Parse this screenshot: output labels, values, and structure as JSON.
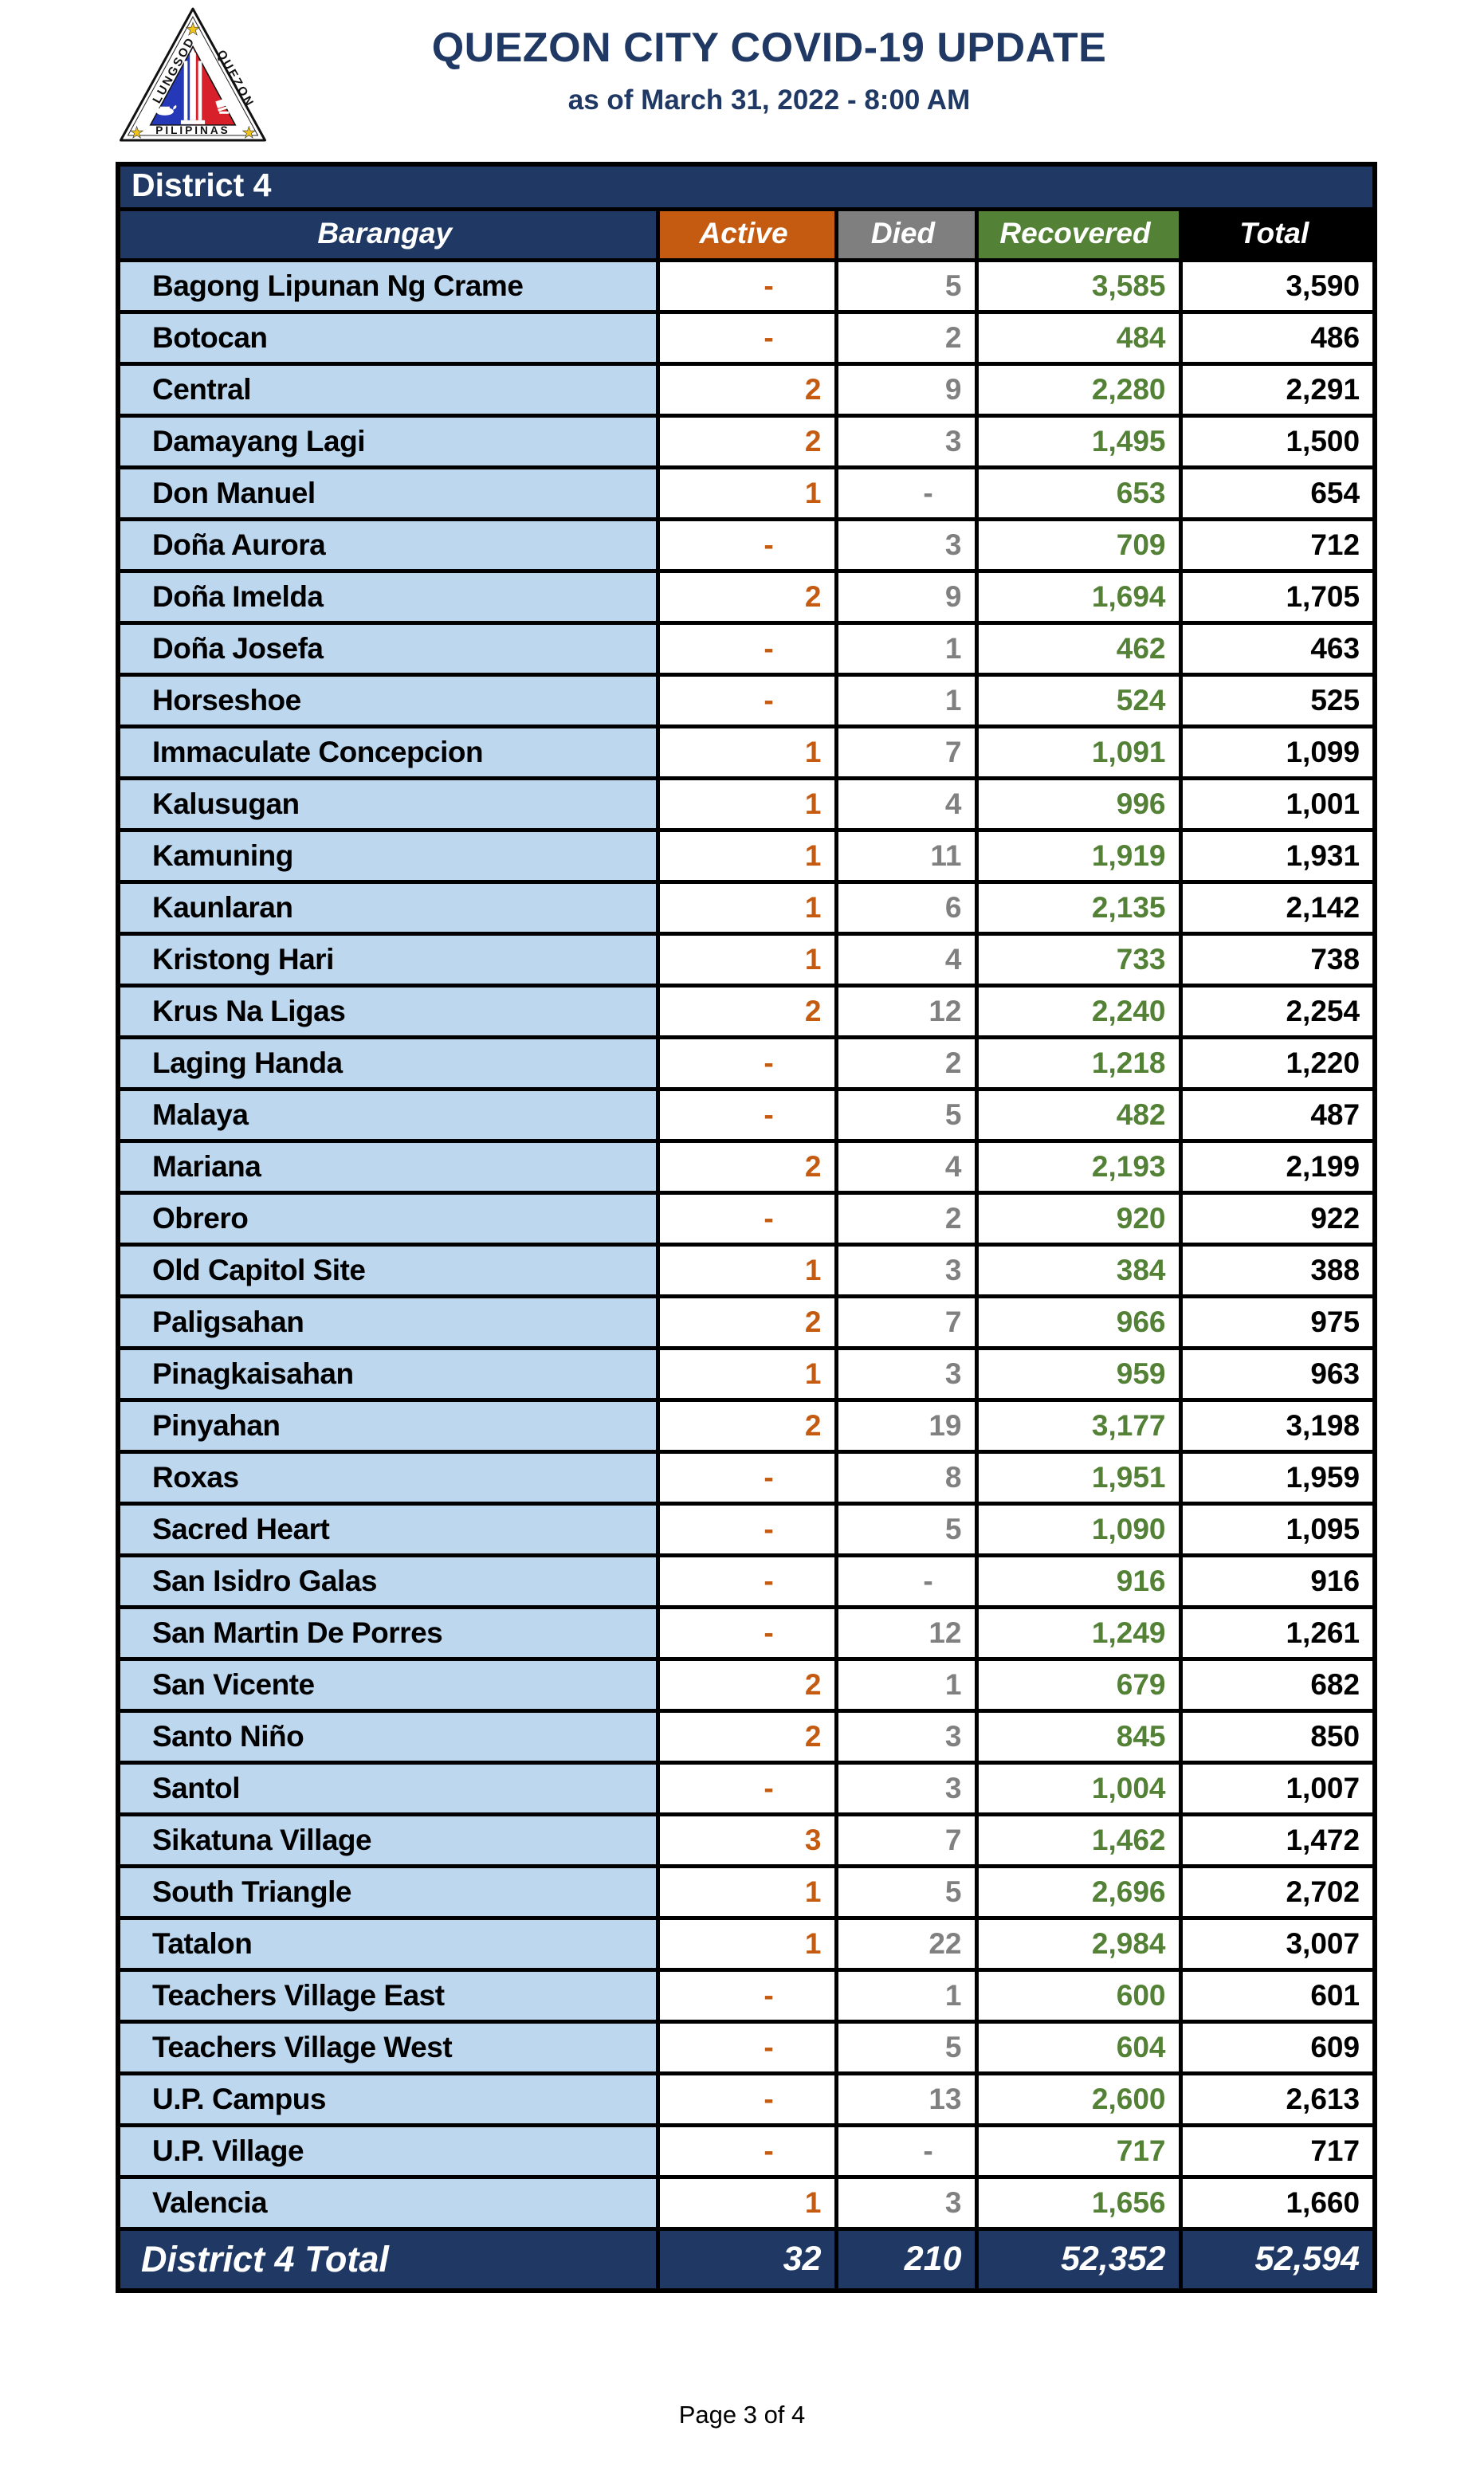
{
  "header": {
    "title": "QUEZON CITY COVID-19 UPDATE",
    "subtitle": "as of March 31, 2022 - 8:00 AM",
    "logo": {
      "text_left": "LUNGSOD",
      "text_right": "QUEZON",
      "text_bottom": "PILIPINAS"
    }
  },
  "colors": {
    "navy": "#1F3864",
    "orange": "#C55A11",
    "gray": "#7F7F7F",
    "green": "#538135",
    "light_blue": "#BDD7EE",
    "title_text": "#1F3864"
  },
  "table": {
    "district_label": "District 4",
    "columns": [
      "Barangay",
      "Active",
      "Died",
      "Recovered",
      "Total"
    ],
    "rows": [
      {
        "barangay": "Bagong Lipunan Ng Crame",
        "active": "-",
        "died": "5",
        "recovered": "3,585",
        "total": "3,590"
      },
      {
        "barangay": "Botocan",
        "active": "-",
        "died": "2",
        "recovered": "484",
        "total": "486"
      },
      {
        "barangay": "Central",
        "active": "2",
        "died": "9",
        "recovered": "2,280",
        "total": "2,291"
      },
      {
        "barangay": "Damayang Lagi",
        "active": "2",
        "died": "3",
        "recovered": "1,495",
        "total": "1,500"
      },
      {
        "barangay": "Don Manuel",
        "active": "1",
        "died": "-",
        "recovered": "653",
        "total": "654"
      },
      {
        "barangay": "Doña Aurora",
        "active": "-",
        "died": "3",
        "recovered": "709",
        "total": "712"
      },
      {
        "barangay": "Doña Imelda",
        "active": "2",
        "died": "9",
        "recovered": "1,694",
        "total": "1,705"
      },
      {
        "barangay": "Doña Josefa",
        "active": "-",
        "died": "1",
        "recovered": "462",
        "total": "463"
      },
      {
        "barangay": "Horseshoe",
        "active": "-",
        "died": "1",
        "recovered": "524",
        "total": "525"
      },
      {
        "barangay": "Immaculate Concepcion",
        "active": "1",
        "died": "7",
        "recovered": "1,091",
        "total": "1,099"
      },
      {
        "barangay": "Kalusugan",
        "active": "1",
        "died": "4",
        "recovered": "996",
        "total": "1,001"
      },
      {
        "barangay": "Kamuning",
        "active": "1",
        "died": "11",
        "recovered": "1,919",
        "total": "1,931"
      },
      {
        "barangay": "Kaunlaran",
        "active": "1",
        "died": "6",
        "recovered": "2,135",
        "total": "2,142"
      },
      {
        "barangay": "Kristong Hari",
        "active": "1",
        "died": "4",
        "recovered": "733",
        "total": "738"
      },
      {
        "barangay": "Krus Na Ligas",
        "active": "2",
        "died": "12",
        "recovered": "2,240",
        "total": "2,254"
      },
      {
        "barangay": "Laging Handa",
        "active": "-",
        "died": "2",
        "recovered": "1,218",
        "total": "1,220"
      },
      {
        "barangay": "Malaya",
        "active": "-",
        "died": "5",
        "recovered": "482",
        "total": "487"
      },
      {
        "barangay": "Mariana",
        "active": "2",
        "died": "4",
        "recovered": "2,193",
        "total": "2,199"
      },
      {
        "barangay": "Obrero",
        "active": "-",
        "died": "2",
        "recovered": "920",
        "total": "922"
      },
      {
        "barangay": "Old Capitol Site",
        "active": "1",
        "died": "3",
        "recovered": "384",
        "total": "388"
      },
      {
        "barangay": "Paligsahan",
        "active": "2",
        "died": "7",
        "recovered": "966",
        "total": "975"
      },
      {
        "barangay": "Pinagkaisahan",
        "active": "1",
        "died": "3",
        "recovered": "959",
        "total": "963"
      },
      {
        "barangay": "Pinyahan",
        "active": "2",
        "died": "19",
        "recovered": "3,177",
        "total": "3,198"
      },
      {
        "barangay": "Roxas",
        "active": "-",
        "died": "8",
        "recovered": "1,951",
        "total": "1,959"
      },
      {
        "barangay": "Sacred Heart",
        "active": "-",
        "died": "5",
        "recovered": "1,090",
        "total": "1,095"
      },
      {
        "barangay": "San Isidro Galas",
        "active": "-",
        "died": "-",
        "recovered": "916",
        "total": "916"
      },
      {
        "barangay": "San Martin De Porres",
        "active": "-",
        "died": "12",
        "recovered": "1,249",
        "total": "1,261"
      },
      {
        "barangay": "San Vicente",
        "active": "2",
        "died": "1",
        "recovered": "679",
        "total": "682"
      },
      {
        "barangay": "Santo Niño",
        "active": "2",
        "died": "3",
        "recovered": "845",
        "total": "850"
      },
      {
        "barangay": "Santol",
        "active": "-",
        "died": "3",
        "recovered": "1,004",
        "total": "1,007"
      },
      {
        "barangay": "Sikatuna Village",
        "active": "3",
        "died": "7",
        "recovered": "1,462",
        "total": "1,472"
      },
      {
        "barangay": "South Triangle",
        "active": "1",
        "died": "5",
        "recovered": "2,696",
        "total": "2,702"
      },
      {
        "barangay": "Tatalon",
        "active": "1",
        "died": "22",
        "recovered": "2,984",
        "total": "3,007"
      },
      {
        "barangay": "Teachers Village East",
        "active": "-",
        "died": "1",
        "recovered": "600",
        "total": "601"
      },
      {
        "barangay": "Teachers Village West",
        "active": "-",
        "died": "5",
        "recovered": "604",
        "total": "609"
      },
      {
        "barangay": "U.P. Campus",
        "active": "-",
        "died": "13",
        "recovered": "2,600",
        "total": "2,613"
      },
      {
        "barangay": "U.P. Village",
        "active": "-",
        "died": "-",
        "recovered": "717",
        "total": "717"
      },
      {
        "barangay": "Valencia",
        "active": "1",
        "died": "3",
        "recovered": "1,656",
        "total": "1,660"
      }
    ],
    "total_row": {
      "label": "District 4 Total",
      "active": "32",
      "died": "210",
      "recovered": "52,352",
      "total": "52,594"
    }
  },
  "footer": {
    "page_text": "Page 3 of 4"
  }
}
